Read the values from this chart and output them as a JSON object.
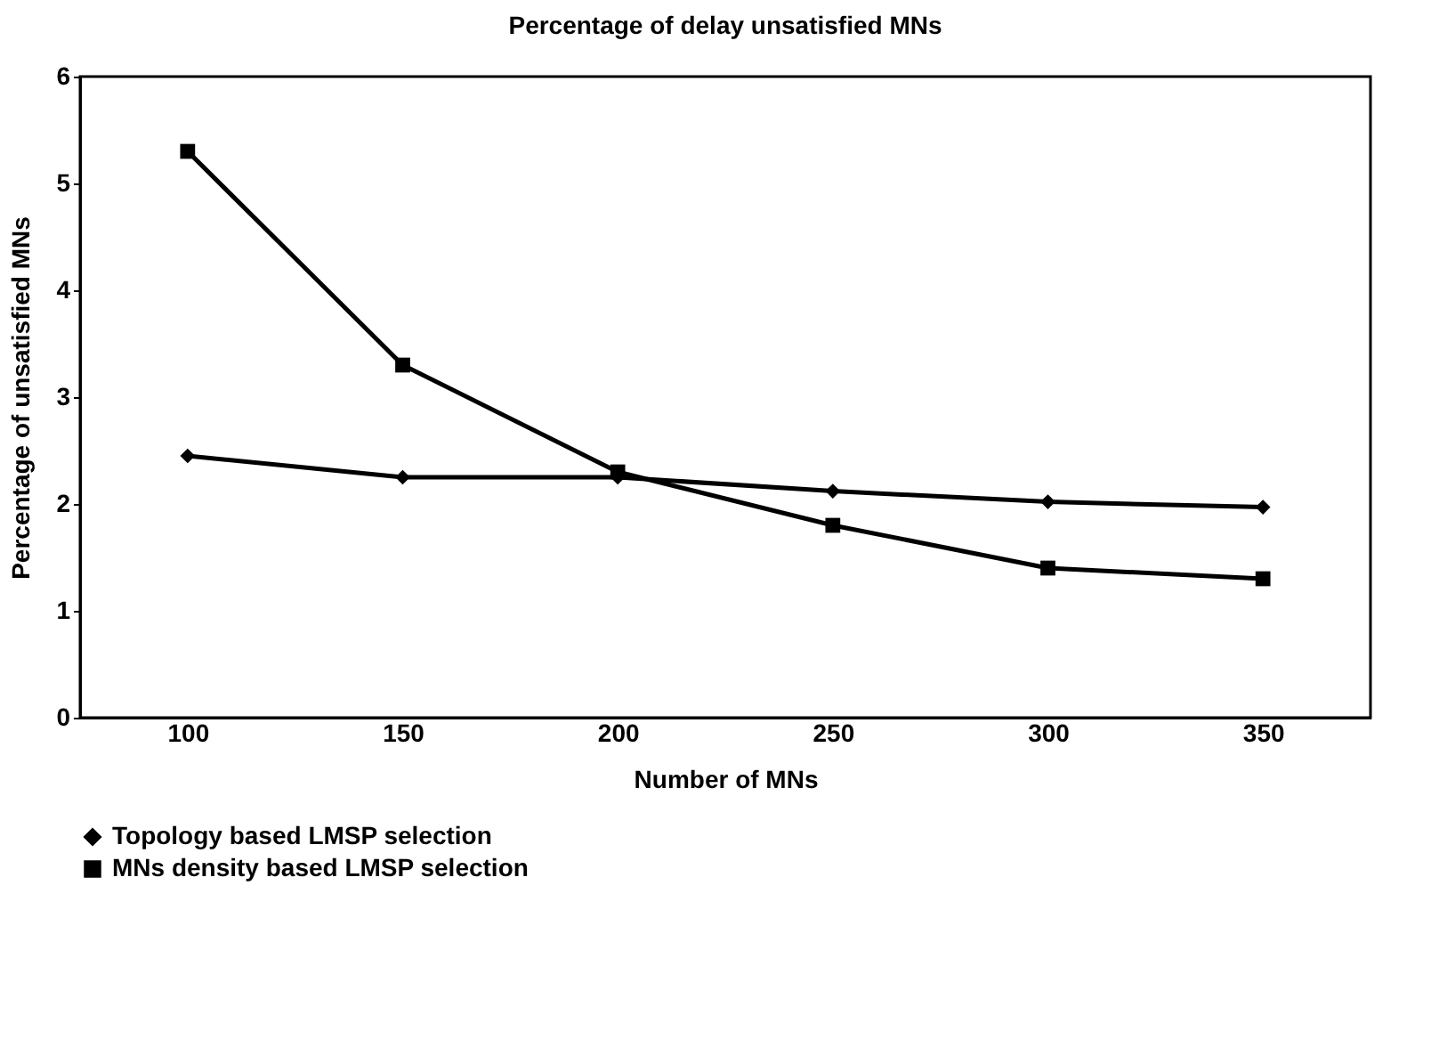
{
  "chart_data": {
    "type": "line",
    "title": "Percentage of delay unsatisfied MNs",
    "xlabel": "Number of MNs",
    "ylabel": "Percentage of unsatisfied MNs",
    "categories": [
      "100",
      "150",
      "200",
      "250",
      "300",
      "350"
    ],
    "series": [
      {
        "name": "Topology based LMSP selection",
        "color": "#000000",
        "marker": "diamond",
        "values": [
          2.45,
          2.25,
          2.25,
          2.12,
          2.02,
          1.97
        ]
      },
      {
        "name": "MNs density based LMSP selection",
        "color": "#000000",
        "marker": "square",
        "values": [
          5.3,
          3.3,
          2.3,
          1.8,
          1.4,
          1.3
        ]
      }
    ],
    "ylim": [
      0,
      6
    ],
    "yticks": [
      0,
      1,
      2,
      3,
      4,
      5,
      6
    ],
    "grid": false,
    "legend": "bottom",
    "line_style": "solid"
  }
}
